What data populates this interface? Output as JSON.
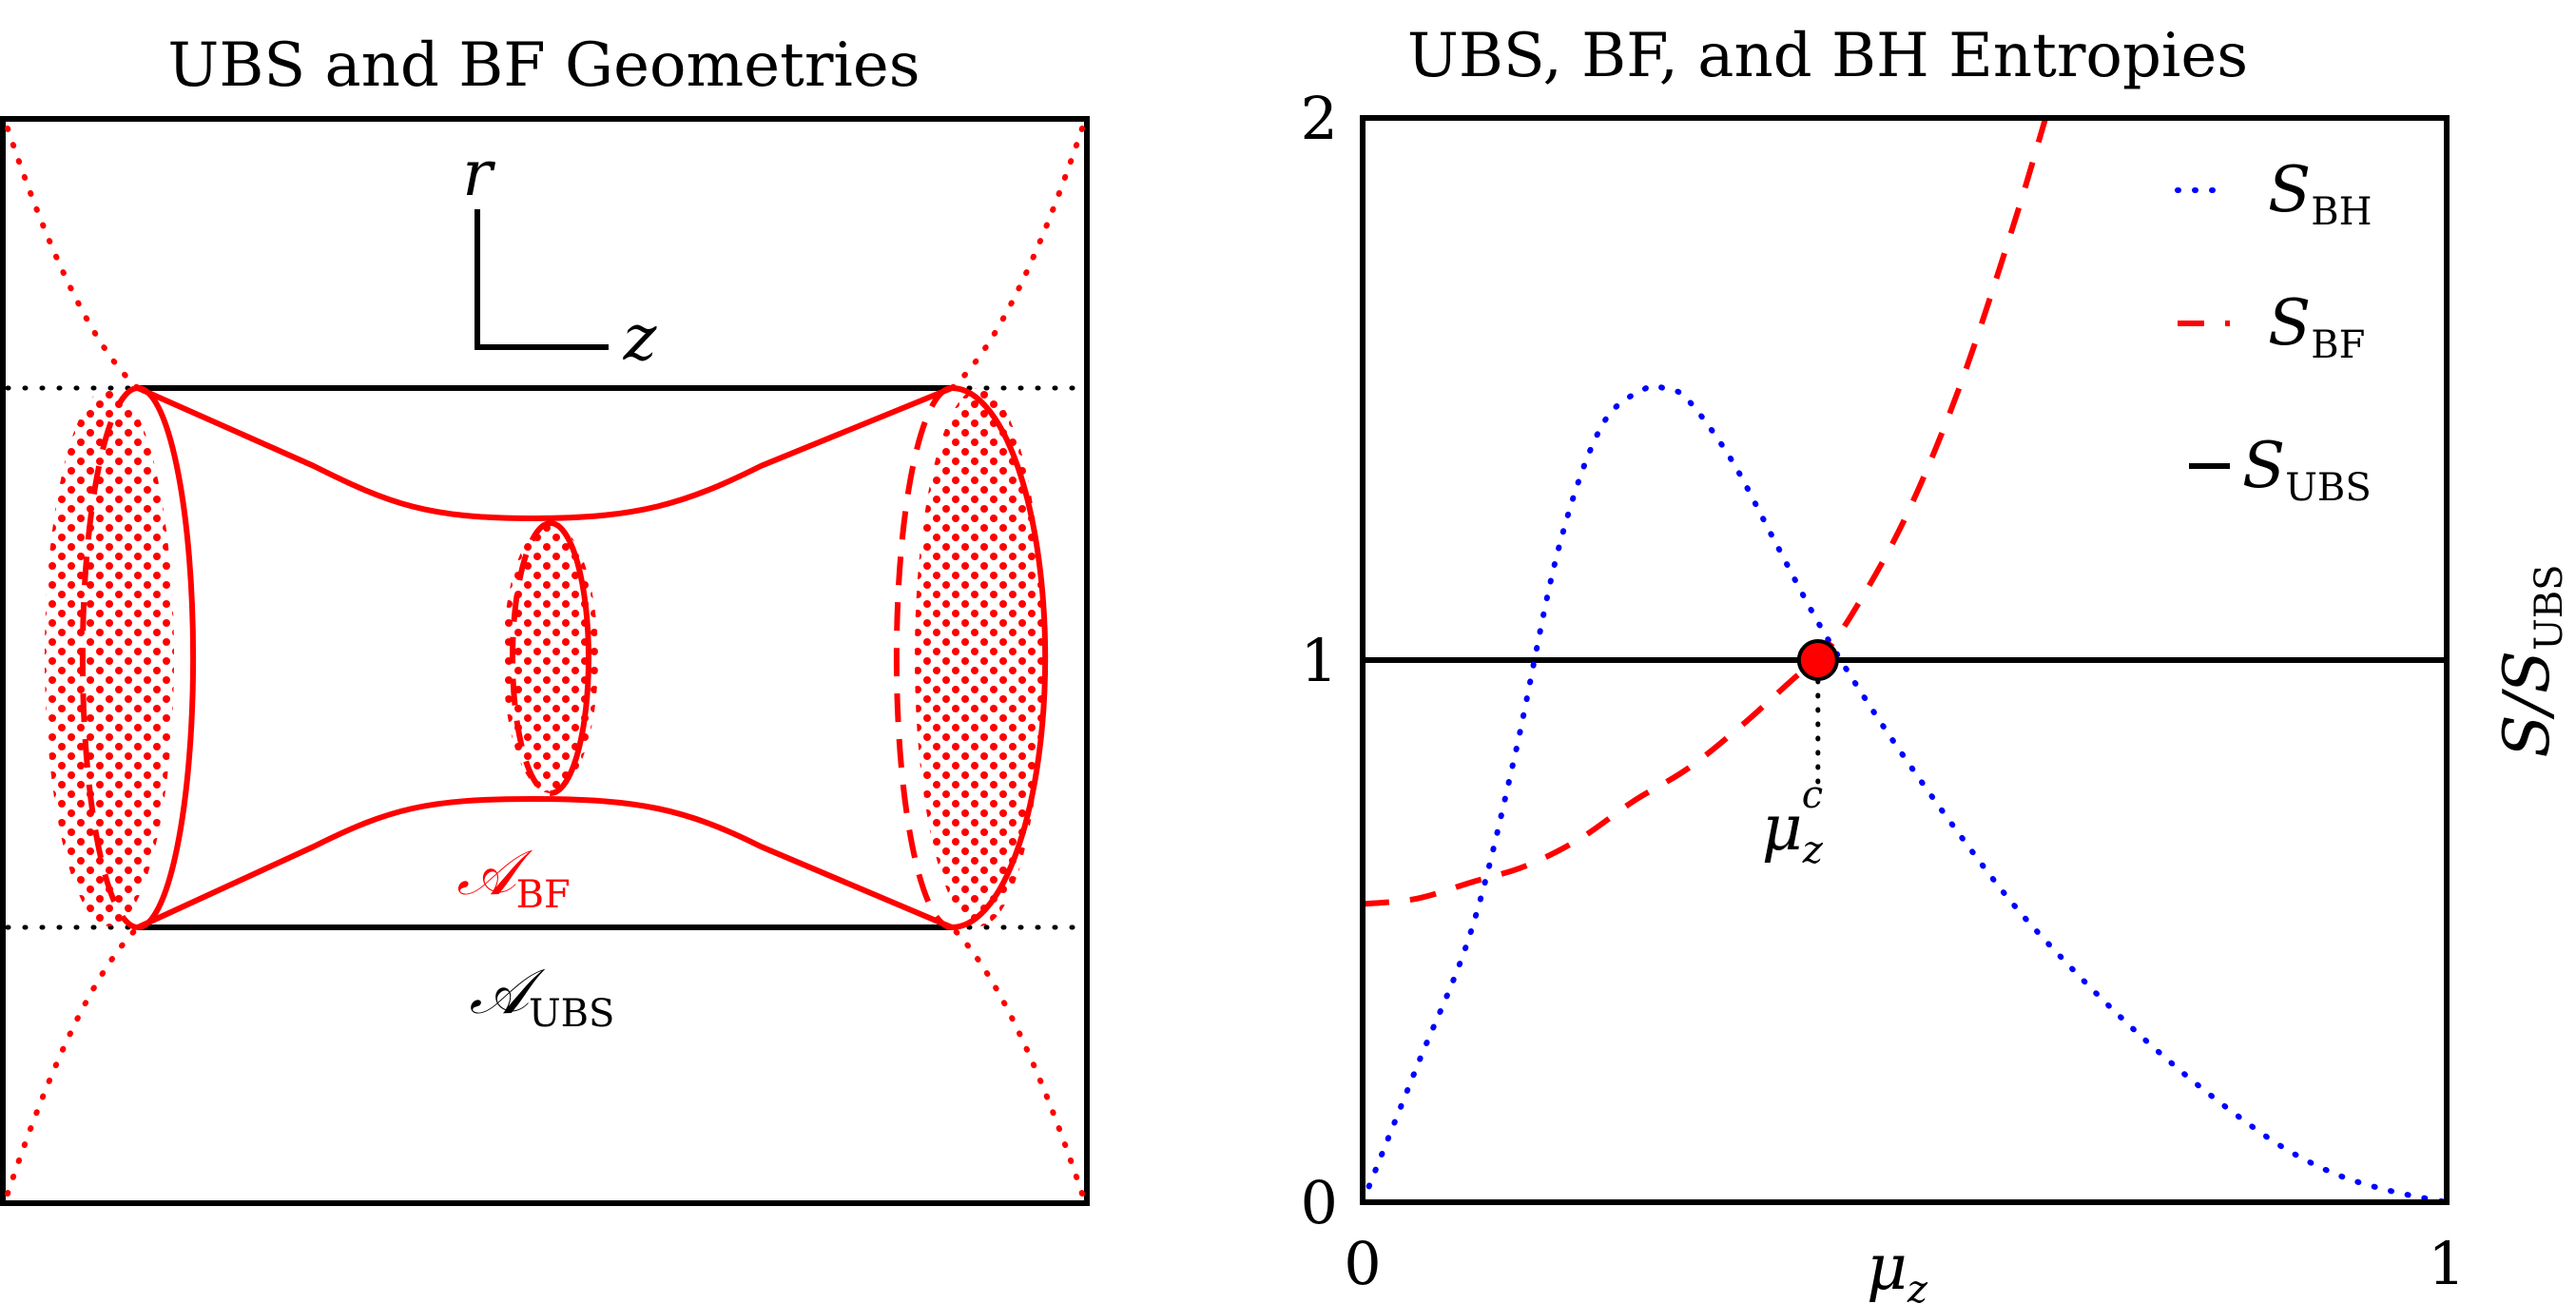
{
  "left_panel": {
    "title": "UBS and BF Geometries",
    "axis_r": "r",
    "axis_z": "z",
    "label_bf_main": "𝒜",
    "label_bf_sub": "BF",
    "label_ubs_main": "𝒜",
    "label_ubs_sub": "UBS",
    "colors": {
      "bf": "#ff0000",
      "ubs": "#000000"
    }
  },
  "right_panel": {
    "title": "UBS, BF, and BH Entropies",
    "ylabel_main": "S/S",
    "ylabel_sub": "UBS",
    "xlabel_main": "μ",
    "xlabel_sub": "z",
    "critical_main": "μ",
    "critical_sub": "z",
    "critical_sup": "c",
    "legend": [
      {
        "main": "S",
        "sub": "BH",
        "style": "dotted",
        "color": "#0000ff"
      },
      {
        "main": "S",
        "sub": "BF",
        "style": "dashed",
        "color": "#ff0000"
      },
      {
        "main": "S",
        "sub": "UBS",
        "style": "solid",
        "color": "#000000"
      }
    ]
  },
  "chart_data": {
    "type": "line",
    "title": "UBS, BF, and BH Entropies",
    "xlabel": "μz",
    "ylabel": "S/SUBS",
    "xlim": [
      0,
      1
    ],
    "ylim": [
      0,
      2
    ],
    "xticks": [
      "0",
      "1"
    ],
    "yticks": [
      "0",
      "1",
      "2"
    ],
    "grid": false,
    "legend_position": "top-right",
    "critical_point": {
      "x": 0.42,
      "y": 1.0,
      "label": "μzc"
    },
    "series": [
      {
        "name": "SBH",
        "style": "dotted",
        "color": "#0000ff",
        "x": [
          0,
          0.05,
          0.1,
          0.14,
          0.18,
          0.22,
          0.26,
          0.28,
          0.3,
          0.34,
          0.38,
          0.42,
          0.46,
          0.5,
          0.55,
          0.6,
          0.65,
          0.7,
          0.75,
          0.8,
          0.85,
          0.9,
          0.95,
          1.0
        ],
        "y": [
          0.0,
          0.25,
          0.5,
          0.82,
          1.2,
          1.43,
          1.5,
          1.5,
          1.48,
          1.37,
          1.22,
          1.07,
          0.94,
          0.82,
          0.68,
          0.55,
          0.44,
          0.34,
          0.25,
          0.17,
          0.1,
          0.05,
          0.02,
          0.0
        ]
      },
      {
        "name": "SBF",
        "style": "dashed",
        "color": "#ff0000",
        "x": [
          0,
          0.05,
          0.1,
          0.15,
          0.2,
          0.25,
          0.3,
          0.35,
          0.4,
          0.42,
          0.45,
          0.5,
          0.55,
          0.6,
          0.63
        ],
        "y": [
          0.55,
          0.56,
          0.59,
          0.62,
          0.67,
          0.74,
          0.8,
          0.88,
          0.97,
          1.0,
          1.08,
          1.26,
          1.5,
          1.8,
          2.0
        ]
      },
      {
        "name": "SUBS",
        "style": "solid",
        "color": "#000000",
        "x": [
          0,
          1
        ],
        "y": [
          1,
          1
        ]
      }
    ]
  }
}
